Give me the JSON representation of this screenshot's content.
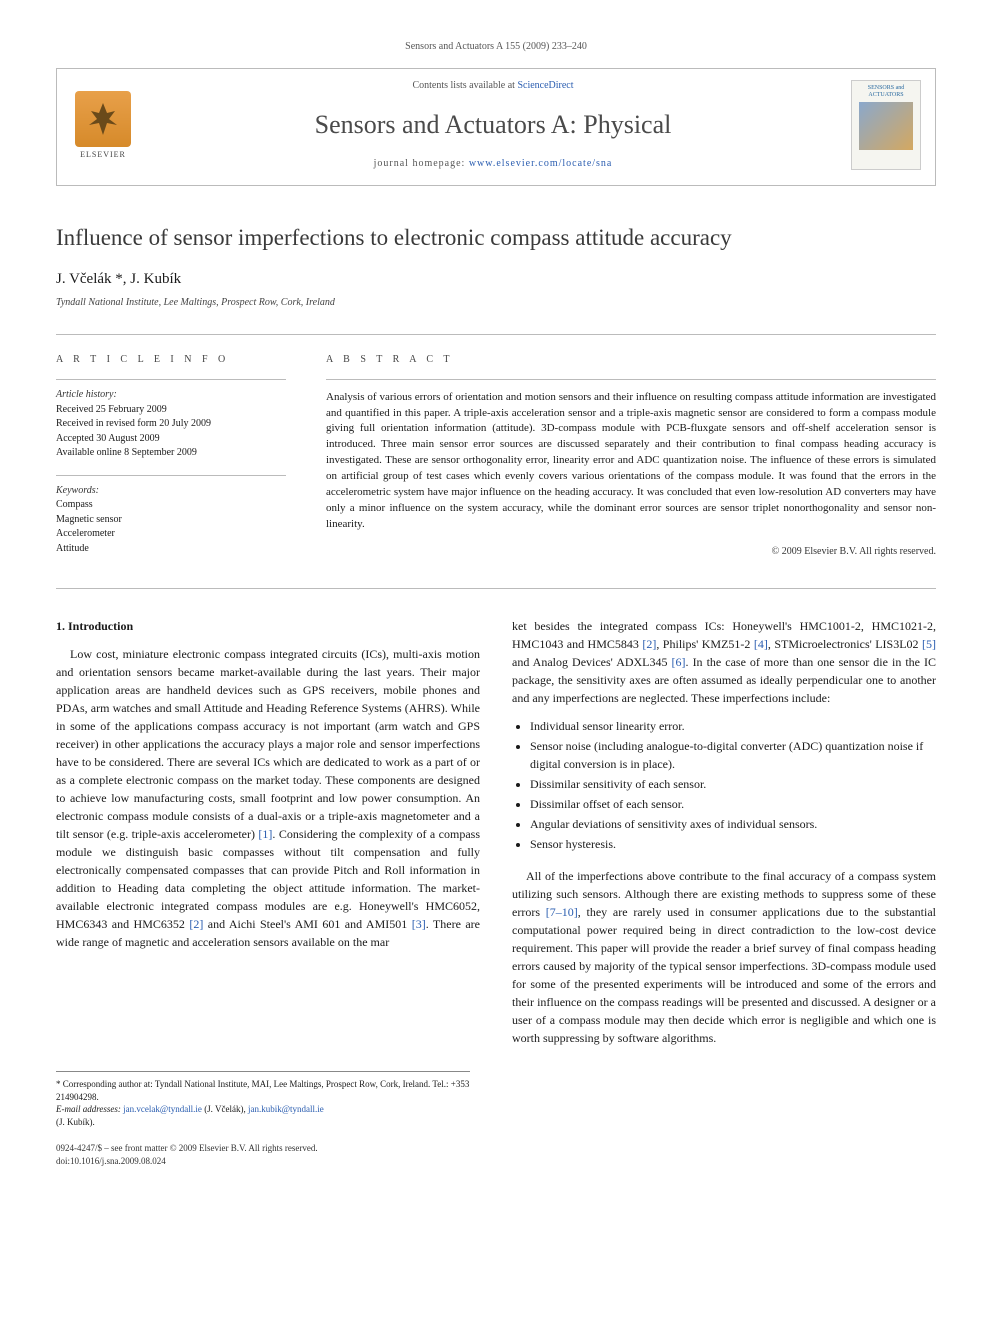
{
  "running_header": "Sensors and Actuators A 155 (2009) 233–240",
  "header": {
    "contents_prefix": "Contents lists available at ",
    "contents_link": "ScienceDirect",
    "journal_name": "Sensors and Actuators A: Physical",
    "homepage_prefix": "journal homepage: ",
    "homepage_link": "www.elsevier.com/locate/sna",
    "elsevier_label": "ELSEVIER",
    "cover_title": "SENSORS and ACTUATORS"
  },
  "title": "Influence of sensor imperfections to electronic compass attitude accuracy",
  "authors": "J. Včelák *, J. Kubík",
  "affiliation": "Tyndall National Institute, Lee Maltings, Prospect Row, Cork, Ireland",
  "info": {
    "label_info": "A R T I C L E   I N F O",
    "history_label": "Article history:",
    "history": {
      "received": "Received 25 February 2009",
      "revised": "Received in revised form 20 July 2009",
      "accepted": "Accepted 30 August 2009",
      "online": "Available online 8 September 2009"
    },
    "keywords_label": "Keywords:",
    "keywords": [
      "Compass",
      "Magnetic sensor",
      "Accelerometer",
      "Attitude"
    ]
  },
  "abstract": {
    "label": "A B S T R A C T",
    "text": "Analysis of various errors of orientation and motion sensors and their influence on resulting compass attitude information are investigated and quantified in this paper. A triple-axis acceleration sensor and a triple-axis magnetic sensor are considered to form a compass module giving full orientation information (attitude). 3D-compass module with PCB-fluxgate sensors and off-shelf acceleration sensor is introduced. Three main sensor error sources are discussed separately and their contribution to final compass heading accuracy is investigated. These are sensor orthogonality error, linearity error and ADC quantization noise. The influence of these errors is simulated on artificial group of test cases which evenly covers various orientations of the compass module. It was found that the errors in the accelerometric system have major influence on the heading accuracy. It was concluded that even low-resolution AD converters may have only a minor influence on the system accuracy, while the dominant error sources are sensor triplet nonorthogonality and sensor non-linearity.",
    "copyright": "© 2009 Elsevier B.V. All rights reserved."
  },
  "body": {
    "section1_heading": "1. Introduction",
    "left_para": "Low cost, miniature electronic compass integrated circuits (ICs), multi-axis motion and orientation sensors became market-available during the last years. Their major application areas are handheld devices such as GPS receivers, mobile phones and PDAs, arm watches and small Attitude and Heading Reference Systems (AHRS). While in some of the applications compass accuracy is not important (arm watch and GPS receiver) in other applications the accuracy plays a major role and sensor imperfections have to be considered. There are several ICs which are dedicated to work as a part of or as a complete electronic compass on the market today. These components are designed to achieve low manufacturing costs, small footprint and low power consumption. An electronic compass module consists of a dual-axis or a triple-axis magnetometer and a tilt sensor (e.g. triple-axis accelerometer) [1]. Considering the complexity of a compass module we distinguish basic compasses without tilt compensation and fully electronically compensated compasses that can provide Pitch and Roll information in addition to Heading data completing the object attitude information. The market-available electronic integrated compass modules are e.g. Honeywell's HMC6052, HMC6343 and HMC6352 [2] and Aichi Steel's AMI 601 and AMI501 [3]. There are wide range of magnetic and acceleration sensors available on the mar",
    "right_para1": "ket besides the integrated compass ICs: Honeywell's HMC1001-2, HMC1021-2, HMC1043 and HMC5843 [2], Philips' KMZ51-2 [4], STMicroelectronics' LIS3L02 [5] and Analog Devices' ADXL345 [6]. In the case of more than one sensor die in the IC package, the sensitivity axes are often assumed as ideally perpendicular one to another and any imperfections are neglected. These imperfections include:",
    "imperfections": [
      "Individual sensor linearity error.",
      "Sensor noise (including analogue-to-digital converter (ADC) quantization noise if digital conversion is in place).",
      "Dissimilar sensitivity of each sensor.",
      "Dissimilar offset of each sensor.",
      "Angular deviations of sensitivity axes of individual sensors.",
      "Sensor hysteresis."
    ],
    "right_para2": "All of the imperfections above contribute to the final accuracy of a compass system utilizing such sensors. Although there are existing methods to suppress some of these errors [7–10], they are rarely used in consumer applications due to the substantial computational power required being in direct contradiction to the low-cost device requirement. This paper will provide the reader a brief survey of final compass heading errors caused by majority of the typical sensor imperfections. 3D-compass module used for some of the presented experiments will be introduced and some of the errors and their influence on the compass readings will be presented and discussed. A designer or a user of a compass module may then decide which error is negligible and which one is worth suppressing by software algorithms."
  },
  "footnote": {
    "corresponding": "* Corresponding author at: Tyndall National Institute, MAI, Lee Maltings, Prospect Row, Cork, Ireland. Tel.: +353 214904298.",
    "emails_label": "E-mail addresses: ",
    "email1": "jan.vcelak@tyndall.ie",
    "email1_paren": "(J. Včelák), ",
    "email2": "jan.kubik@tyndall.ie",
    "email2_paren": "(J. Kubík)."
  },
  "footer": {
    "line1": "0924-4247/$ – see front matter © 2009 Elsevier B.V. All rights reserved.",
    "line2": "doi:10.1016/j.sna.2009.08.024"
  },
  "colors": {
    "link": "#2a5db0",
    "text": "#1a1a1a",
    "muted": "#555555",
    "rule": "#bbbbbb"
  }
}
